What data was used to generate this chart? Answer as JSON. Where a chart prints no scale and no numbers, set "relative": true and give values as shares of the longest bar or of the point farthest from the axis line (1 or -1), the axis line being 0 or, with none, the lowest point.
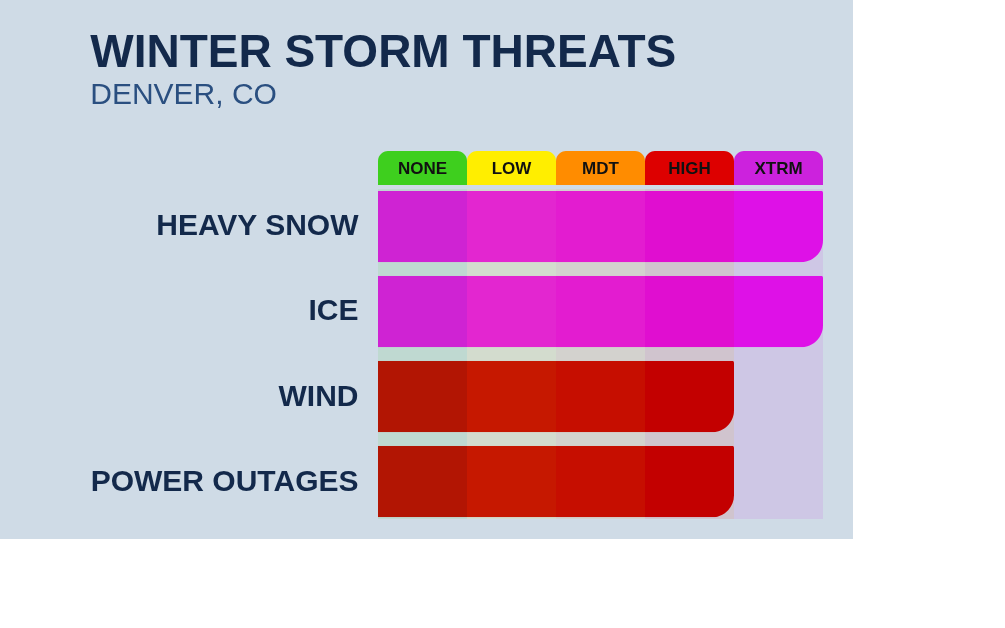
{
  "chart_data": {
    "type": "bar",
    "orientation": "horizontal",
    "relative": true,
    "title": "WINTER STORM THREATS",
    "subtitle": "DENVER, CO",
    "categories": [
      "HEAVY SNOW",
      "ICE",
      "WIND",
      "POWER OUTAGES"
    ],
    "values": [
      1,
      1,
      0.8,
      0.8
    ],
    "colors": [
      "#e010e8",
      "#e010e8",
      "#c00000",
      "#c00000"
    ],
    "bands": [
      {
        "axis": "x",
        "from": 0,
        "to": 0.2,
        "label": "NONE",
        "color": "#3ecf1e"
      },
      {
        "axis": "x",
        "from": 0.2,
        "to": 0.4,
        "label": "LOW",
        "color": "#ffee00"
      },
      {
        "axis": "x",
        "from": 0.4,
        "to": 0.6,
        "label": "MDT",
        "color": "#ff8c00"
      },
      {
        "axis": "x",
        "from": 0.6,
        "to": 0.8,
        "label": "HIGH",
        "color": "#dd0000"
      },
      {
        "axis": "x",
        "from": 0.8,
        "to": 1,
        "label": "XTRM",
        "color": "#cc22dd"
      }
    ],
    "grid": false,
    "legend": false
  }
}
